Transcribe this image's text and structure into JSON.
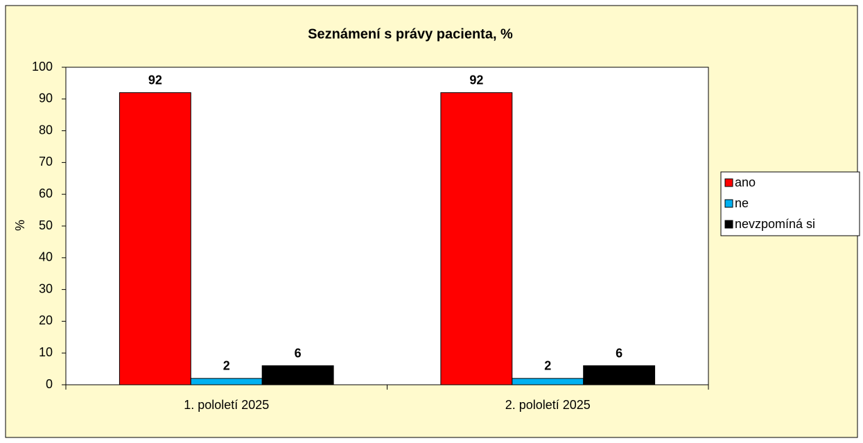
{
  "chart_data": {
    "type": "bar",
    "title": "Seznámení s právy pacienta, %",
    "y_label": "%",
    "categories": [
      "1. pololetí 2025",
      "2. pololetí 2025"
    ],
    "series": [
      {
        "name": "ano",
        "color": "#ff0000",
        "values": [
          92,
          92
        ]
      },
      {
        "name": "ne",
        "color": "#00b0f0",
        "values": [
          2,
          2
        ]
      },
      {
        "name": "nevzpomíná si",
        "color": "#000000",
        "values": [
          6,
          6
        ]
      }
    ],
    "ylim": [
      0,
      100
    ],
    "yticks": [
      0,
      10,
      20,
      30,
      40,
      50,
      60,
      70,
      80,
      90,
      100
    ],
    "legend": "right"
  }
}
